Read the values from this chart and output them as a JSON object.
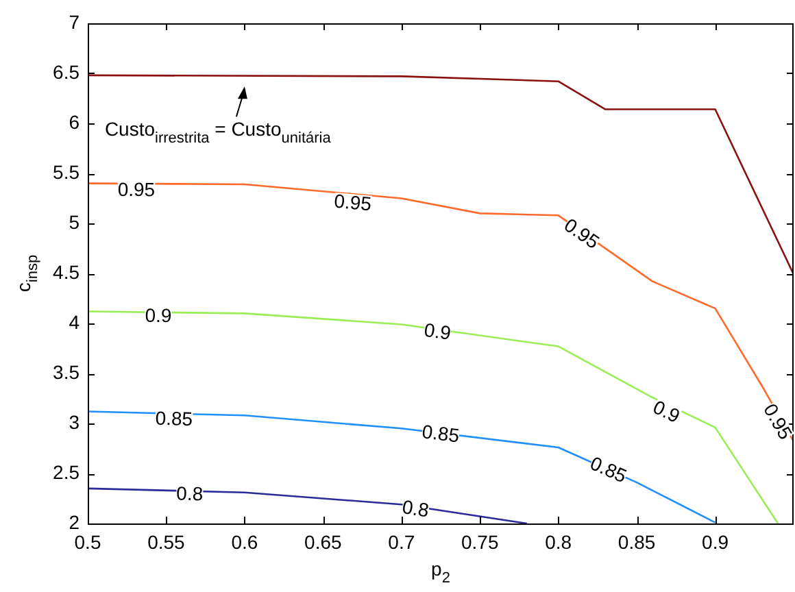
{
  "chart_data": {
    "type": "line",
    "xlabel": "p$_{2}$",
    "ylabel": "c$_{insp}$",
    "xlim": [
      0.5,
      0.95
    ],
    "xticks": [
      0.5,
      0.55,
      0.6,
      0.65,
      0.7,
      0.75,
      0.8,
      0.85,
      0.9
    ],
    "ylim": [
      2,
      7
    ],
    "yticks": [
      2,
      2.5,
      3,
      3.5,
      4,
      4.5,
      5,
      5.5,
      6,
      6.5,
      7
    ],
    "grid": false,
    "legend": false,
    "marker": "none",
    "line_style": "solid",
    "series": [
      {
        "color": "#2a2a9a",
        "x": [
          0.5,
          0.6,
          0.7,
          0.78
        ],
        "values": [
          2.35,
          2.31,
          2.19,
          2.0
        ]
      },
      {
        "color": "#1e90ff",
        "x": [
          0.5,
          0.6,
          0.7,
          0.8,
          0.85,
          0.9
        ],
        "values": [
          3.12,
          3.08,
          2.95,
          2.76,
          2.41,
          2.01
        ]
      },
      {
        "color": "#99ee55",
        "x": [
          0.5,
          0.6,
          0.7,
          0.8,
          0.86,
          0.9,
          0.94
        ],
        "values": [
          4.12,
          4.1,
          3.99,
          3.77,
          3.26,
          2.96,
          2.0
        ]
      },
      {
        "color": "#ff6a2a",
        "x": [
          0.5,
          0.6,
          0.7,
          0.75,
          0.8,
          0.86,
          0.9,
          0.93,
          0.95
        ],
        "values": [
          5.4,
          5.39,
          5.25,
          5.1,
          5.08,
          4.42,
          4.15,
          3.37,
          2.82
        ]
      },
      {
        "color": "#8b1010",
        "x": [
          0.5,
          0.7,
          0.8,
          0.83,
          0.9,
          0.95
        ],
        "values": [
          6.48,
          6.47,
          6.42,
          6.14,
          6.14,
          4.49
        ]
      }
    ],
    "annotations": [
      {
        "text": "0.8",
        "x": 0.565,
        "y": 2.3
      },
      {
        "text": "0.8",
        "x": 0.709,
        "y": 2.15
      },
      {
        "text": "0.85",
        "x": 0.555,
        "y": 3.05
      },
      {
        "text": "0.85",
        "x": 0.725,
        "y": 2.9
      },
      {
        "text": "0.85",
        "x": 0.832,
        "y": 2.54
      },
      {
        "text": "0.9",
        "x": 0.545,
        "y": 4.08
      },
      {
        "text": "0.9",
        "x": 0.723,
        "y": 3.92
      },
      {
        "text": "0.9",
        "x": 0.869,
        "y": 3.12
      },
      {
        "text": "0.95",
        "x": 0.531,
        "y": 5.34
      },
      {
        "text": "0.95",
        "x": 0.669,
        "y": 5.21
      },
      {
        "text": "0.95",
        "x": 0.815,
        "y": 4.9
      },
      {
        "text": "0.95",
        "x": 0.94,
        "y": 3.02
      },
      {
        "text": "Custo$_{irrestrita}$ = Custo$_{unitária}$",
        "x": 0.6,
        "y": 6.45
      }
    ]
  }
}
